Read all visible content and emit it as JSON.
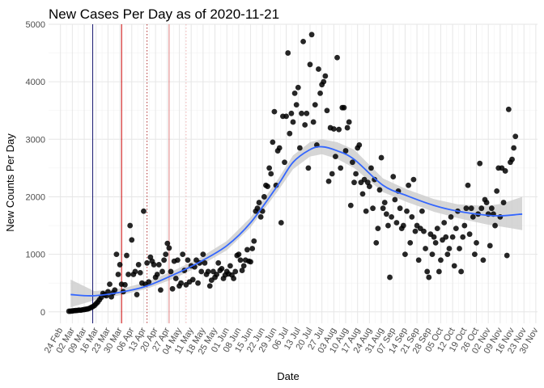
{
  "chart_data": {
    "type": "scatter",
    "title": "New Cases Per Day as of 2020-11-21",
    "xlabel": "Date",
    "ylabel": "New Counts Per Day",
    "x_range": [
      "2020-02-17",
      "2020-12-01"
    ],
    "ylim": [
      -200,
      5000
    ],
    "y_ticks": [
      0,
      1000,
      2000,
      3000,
      4000,
      5000
    ],
    "x_ticks": [
      "2020-02-24",
      "2020-03-02",
      "2020-03-09",
      "2020-03-16",
      "2020-03-23",
      "2020-03-30",
      "2020-04-06",
      "2020-04-13",
      "2020-04-20",
      "2020-04-27",
      "2020-05-04",
      "2020-05-11",
      "2020-05-18",
      "2020-05-25",
      "2020-06-01",
      "2020-06-08",
      "2020-06-15",
      "2020-06-22",
      "2020-06-29",
      "2020-07-06",
      "2020-07-13",
      "2020-07-20",
      "2020-07-27",
      "2020-08-03",
      "2020-08-10",
      "2020-08-17",
      "2020-08-24",
      "2020-08-31",
      "2020-09-07",
      "2020-09-14",
      "2020-09-21",
      "2020-09-28",
      "2020-10-05",
      "2020-10-12",
      "2020-10-19",
      "2020-10-26",
      "2020-11-02",
      "2020-11-09",
      "2020-11-16",
      "2020-11-23",
      "2020-11-30"
    ],
    "x_tick_labels": [
      "24 Feb",
      "02 Mar",
      "09 Mar",
      "16 Mar",
      "23 Mar",
      "30 Mar",
      "06 Apr",
      "13 Apr",
      "20 Apr",
      "27 Apr",
      "04 May",
      "11 May",
      "18 May",
      "25 May",
      "01 Jun",
      "08 Jun",
      "15 Jun",
      "22 Jun",
      "29 Jun",
      "06 Jul",
      "13 Jul",
      "20 Jul",
      "27 Jul",
      "03 Aug",
      "10 Aug",
      "17 Aug",
      "24 Aug",
      "31 Aug",
      "07 Sep",
      "14 Sep",
      "21 Sep",
      "28 Sep",
      "05 Oct",
      "12 Oct",
      "19 Oct",
      "26 Oct",
      "02 Nov",
      "09 Nov",
      "16 Nov",
      "23 Nov",
      "30 Nov"
    ],
    "grid": true,
    "vertical_lines": [
      {
        "x": "2020-03-14",
        "color": "#191970",
        "style": "solid"
      },
      {
        "x": "2020-03-31",
        "color": "#cc0000",
        "style": "solid"
      },
      {
        "x": "2020-04-15",
        "color": "#b03030",
        "style": "dotted"
      },
      {
        "x": "2020-04-28",
        "color": "#e08080",
        "style": "solid"
      },
      {
        "x": "2020-05-08",
        "color": "#f0b0b0",
        "style": "dotted"
      }
    ],
    "point_color": "#000000",
    "smooth_color": "#3366ff",
    "ribbon_color": "#cccccc",
    "smooth": {
      "x": [
        "2020-03-01",
        "2020-03-15",
        "2020-04-01",
        "2020-04-15",
        "2020-05-01",
        "2020-05-15",
        "2020-06-01",
        "2020-06-15",
        "2020-07-01",
        "2020-07-10",
        "2020-07-20",
        "2020-07-27",
        "2020-08-05",
        "2020-08-15",
        "2020-09-01",
        "2020-09-15",
        "2020-10-01",
        "2020-10-15",
        "2020-11-01",
        "2020-11-10",
        "2020-11-22"
      ],
      "y": [
        300,
        280,
        350,
        450,
        650,
        850,
        1150,
        1550,
        2200,
        2600,
        2820,
        2870,
        2800,
        2650,
        2200,
        2020,
        1850,
        1750,
        1680,
        1670,
        1700
      ],
      "lower": [
        80,
        200,
        300,
        400,
        580,
        780,
        1070,
        1470,
        2100,
        2480,
        2700,
        2740,
        2660,
        2500,
        2080,
        1910,
        1740,
        1630,
        1520,
        1480,
        1420
      ],
      "upper": [
        560,
        360,
        410,
        520,
        720,
        920,
        1230,
        1640,
        2300,
        2720,
        2950,
        3000,
        2950,
        2820,
        2320,
        2130,
        1960,
        1870,
        1840,
        1880,
        2000
      ]
    },
    "points": [
      [
        "2020-02-29",
        10
      ],
      [
        "2020-03-01",
        12
      ],
      [
        "2020-03-02",
        15
      ],
      [
        "2020-03-03",
        20
      ],
      [
        "2020-03-04",
        22
      ],
      [
        "2020-03-05",
        25
      ],
      [
        "2020-03-06",
        30
      ],
      [
        "2020-03-07",
        28
      ],
      [
        "2020-03-08",
        35
      ],
      [
        "2020-03-09",
        40
      ],
      [
        "2020-03-10",
        45
      ],
      [
        "2020-03-11",
        50
      ],
      [
        "2020-03-12",
        60
      ],
      [
        "2020-03-13",
        75
      ],
      [
        "2020-03-14",
        90
      ],
      [
        "2020-03-15",
        110
      ],
      [
        "2020-03-16",
        140
      ],
      [
        "2020-03-17",
        170
      ],
      [
        "2020-03-18",
        210
      ],
      [
        "2020-03-19",
        250
      ],
      [
        "2020-03-20",
        320
      ],
      [
        "2020-03-21",
        300
      ],
      [
        "2020-03-22",
        280
      ],
      [
        "2020-03-23",
        350
      ],
      [
        "2020-03-24",
        480
      ],
      [
        "2020-03-25",
        260
      ],
      [
        "2020-03-26",
        330
      ],
      [
        "2020-03-27",
        380
      ],
      [
        "2020-03-28",
        1000
      ],
      [
        "2020-03-29",
        650
      ],
      [
        "2020-03-30",
        820
      ],
      [
        "2020-03-31",
        480
      ],
      [
        "2020-04-01",
        350
      ],
      [
        "2020-04-02",
        470
      ],
      [
        "2020-04-03",
        980
      ],
      [
        "2020-04-04",
        650
      ],
      [
        "2020-04-05",
        1500
      ],
      [
        "2020-04-06",
        1250
      ],
      [
        "2020-04-07",
        650
      ],
      [
        "2020-04-08",
        700
      ],
      [
        "2020-04-09",
        300
      ],
      [
        "2020-04-10",
        820
      ],
      [
        "2020-04-11",
        680
      ],
      [
        "2020-04-12",
        500
      ],
      [
        "2020-04-13",
        1750
      ],
      [
        "2020-04-14",
        480
      ],
      [
        "2020-04-15",
        850
      ],
      [
        "2020-04-16",
        520
      ],
      [
        "2020-04-17",
        950
      ],
      [
        "2020-04-18",
        880
      ],
      [
        "2020-04-19",
        820
      ],
      [
        "2020-04-20",
        600
      ],
      [
        "2020-04-21",
        650
      ],
      [
        "2020-04-22",
        820
      ],
      [
        "2020-04-23",
        380
      ],
      [
        "2020-04-24",
        700
      ],
      [
        "2020-04-25",
        900
      ],
      [
        "2020-04-26",
        1000
      ],
      [
        "2020-04-27",
        1190
      ],
      [
        "2020-04-28",
        1110
      ],
      [
        "2020-04-29",
        700
      ],
      [
        "2020-04-30",
        400
      ],
      [
        "2020-05-01",
        880
      ],
      [
        "2020-05-02",
        580
      ],
      [
        "2020-05-03",
        900
      ],
      [
        "2020-05-04",
        450
      ],
      [
        "2020-05-05",
        500
      ],
      [
        "2020-05-06",
        1000
      ],
      [
        "2020-05-07",
        720
      ],
      [
        "2020-05-08",
        470
      ],
      [
        "2020-05-09",
        900
      ],
      [
        "2020-05-10",
        520
      ],
      [
        "2020-05-11",
        800
      ],
      [
        "2020-05-12",
        560
      ],
      [
        "2020-05-13",
        780
      ],
      [
        "2020-05-14",
        900
      ],
      [
        "2020-05-15",
        500
      ],
      [
        "2020-05-16",
        850
      ],
      [
        "2020-05-17",
        700
      ],
      [
        "2020-05-18",
        1000
      ],
      [
        "2020-05-19",
        850
      ],
      [
        "2020-05-20",
        650
      ],
      [
        "2020-05-21",
        700
      ],
      [
        "2020-05-22",
        450
      ],
      [
        "2020-05-23",
        550
      ],
      [
        "2020-05-24",
        700
      ],
      [
        "2020-05-25",
        600
      ],
      [
        "2020-05-26",
        650
      ],
      [
        "2020-05-27",
        850
      ],
      [
        "2020-05-28",
        720
      ],
      [
        "2020-05-29",
        750
      ],
      [
        "2020-05-30",
        580
      ],
      [
        "2020-05-31",
        640
      ],
      [
        "2020-06-01",
        700
      ],
      [
        "2020-06-02",
        660
      ],
      [
        "2020-06-03",
        800
      ],
      [
        "2020-06-04",
        640
      ],
      [
        "2020-06-05",
        580
      ],
      [
        "2020-06-06",
        700
      ],
      [
        "2020-06-07",
        980
      ],
      [
        "2020-06-08",
        1000
      ],
      [
        "2020-06-09",
        900
      ],
      [
        "2020-06-10",
        720
      ],
      [
        "2020-06-11",
        800
      ],
      [
        "2020-06-12",
        900
      ],
      [
        "2020-06-13",
        1080
      ],
      [
        "2020-06-14",
        880
      ],
      [
        "2020-06-15",
        870
      ],
      [
        "2020-06-16",
        1100
      ],
      [
        "2020-06-17",
        1230
      ],
      [
        "2020-06-18",
        1750
      ],
      [
        "2020-06-19",
        1800
      ],
      [
        "2020-06-20",
        1900
      ],
      [
        "2020-06-21",
        1650
      ],
      [
        "2020-06-22",
        1750
      ],
      [
        "2020-06-23",
        2000
      ],
      [
        "2020-06-24",
        2200
      ],
      [
        "2020-06-25",
        2180
      ],
      [
        "2020-06-26",
        2500
      ],
      [
        "2020-06-27",
        2400
      ],
      [
        "2020-06-28",
        2950
      ],
      [
        "2020-06-29",
        3480
      ],
      [
        "2020-06-30",
        2200
      ],
      [
        "2020-07-01",
        2800
      ],
      [
        "2020-07-02",
        2850
      ],
      [
        "2020-07-03",
        1550
      ],
      [
        "2020-07-04",
        3400
      ],
      [
        "2020-07-05",
        2600
      ],
      [
        "2020-07-06",
        3400
      ],
      [
        "2020-07-07",
        4500
      ],
      [
        "2020-07-08",
        3100
      ],
      [
        "2020-07-09",
        3450
      ],
      [
        "2020-07-10",
        3300
      ],
      [
        "2020-07-11",
        3800
      ],
      [
        "2020-07-12",
        3600
      ],
      [
        "2020-07-13",
        3900
      ],
      [
        "2020-07-14",
        2850
      ],
      [
        "2020-07-15",
        3450
      ],
      [
        "2020-07-16",
        4700
      ],
      [
        "2020-07-17",
        3250
      ],
      [
        "2020-07-18",
        3450
      ],
      [
        "2020-07-19",
        2500
      ],
      [
        "2020-07-20",
        4300
      ],
      [
        "2020-07-21",
        4820
      ],
      [
        "2020-07-22",
        3300
      ],
      [
        "2020-07-23",
        3600
      ],
      [
        "2020-07-24",
        2900
      ],
      [
        "2020-07-25",
        4220
      ],
      [
        "2020-07-26",
        3800
      ],
      [
        "2020-07-27",
        3950
      ],
      [
        "2020-07-28",
        4000
      ],
      [
        "2020-07-29",
        4100
      ],
      [
        "2020-07-30",
        3500
      ],
      [
        "2020-07-31",
        2270
      ],
      [
        "2020-08-01",
        3200
      ],
      [
        "2020-08-02",
        2400
      ],
      [
        "2020-08-03",
        3180
      ],
      [
        "2020-08-04",
        2700
      ],
      [
        "2020-08-05",
        4420
      ],
      [
        "2020-08-06",
        3170
      ],
      [
        "2020-08-07",
        2500
      ],
      [
        "2020-08-08",
        3550
      ],
      [
        "2020-08-09",
        3550
      ],
      [
        "2020-08-10",
        2800
      ],
      [
        "2020-08-11",
        3200
      ],
      [
        "2020-08-12",
        3300
      ],
      [
        "2020-08-13",
        1850
      ],
      [
        "2020-08-14",
        2600
      ],
      [
        "2020-08-15",
        2250
      ],
      [
        "2020-08-16",
        2400
      ],
      [
        "2020-08-17",
        2850
      ],
      [
        "2020-08-18",
        2900
      ],
      [
        "2020-08-19",
        2250
      ],
      [
        "2020-08-20",
        2050
      ],
      [
        "2020-08-21",
        2300
      ],
      [
        "2020-08-22",
        1750
      ],
      [
        "2020-08-23",
        2250
      ],
      [
        "2020-08-24",
        2180
      ],
      [
        "2020-08-25",
        2500
      ],
      [
        "2020-08-26",
        1800
      ],
      [
        "2020-08-27",
        2300
      ],
      [
        "2020-08-28",
        1200
      ],
      [
        "2020-08-29",
        1450
      ],
      [
        "2020-08-30",
        2120
      ],
      [
        "2020-08-31",
        2680
      ],
      [
        "2020-09-01",
        1800
      ],
      [
        "2020-09-02",
        1900
      ],
      [
        "2020-09-03",
        1700
      ],
      [
        "2020-09-04",
        1500
      ],
      [
        "2020-09-05",
        600
      ],
      [
        "2020-09-06",
        1650
      ],
      [
        "2020-09-07",
        2350
      ],
      [
        "2020-09-08",
        1950
      ],
      [
        "2020-09-09",
        1550
      ],
      [
        "2020-09-10",
        2100
      ],
      [
        "2020-09-11",
        1800
      ],
      [
        "2020-09-12",
        1450
      ],
      [
        "2020-09-13",
        1500
      ],
      [
        "2020-09-14",
        1000
      ],
      [
        "2020-09-15",
        1750
      ],
      [
        "2020-09-16",
        2200
      ],
      [
        "2020-09-17",
        1200
      ],
      [
        "2020-09-18",
        1650
      ],
      [
        "2020-09-19",
        2300
      ],
      [
        "2020-09-20",
        1400
      ],
      [
        "2020-09-21",
        1500
      ],
      [
        "2020-09-22",
        900
      ],
      [
        "2020-09-23",
        1450
      ],
      [
        "2020-09-24",
        1750
      ],
      [
        "2020-09-25",
        1400
      ],
      [
        "2020-09-26",
        1100
      ],
      [
        "2020-09-27",
        700
      ],
      [
        "2020-09-28",
        600
      ],
      [
        "2020-09-29",
        1350
      ],
      [
        "2020-09-30",
        1000
      ],
      [
        "2020-10-01",
        1300
      ],
      [
        "2020-10-02",
        1200
      ],
      [
        "2020-10-03",
        1450
      ],
      [
        "2020-10-04",
        700
      ],
      [
        "2020-10-05",
        900
      ],
      [
        "2020-10-06",
        1250
      ],
      [
        "2020-10-07",
        1550
      ],
      [
        "2020-10-08",
        1300
      ],
      [
        "2020-10-09",
        1000
      ],
      [
        "2020-10-10",
        1100
      ],
      [
        "2020-10-11",
        1650
      ],
      [
        "2020-10-12",
        1300
      ],
      [
        "2020-10-13",
        800
      ],
      [
        "2020-10-14",
        1450
      ],
      [
        "2020-10-15",
        1750
      ],
      [
        "2020-10-16",
        1100
      ],
      [
        "2020-10-17",
        700
      ],
      [
        "2020-10-18",
        1300
      ],
      [
        "2020-10-19",
        1500
      ],
      [
        "2020-10-20",
        1800
      ],
      [
        "2020-10-21",
        2200
      ],
      [
        "2020-10-22",
        1350
      ],
      [
        "2020-10-23",
        1800
      ],
      [
        "2020-10-24",
        1650
      ],
      [
        "2020-10-25",
        1000
      ],
      [
        "2020-10-26",
        1200
      ],
      [
        "2020-10-27",
        1700
      ],
      [
        "2020-10-28",
        2580
      ],
      [
        "2020-10-29",
        1800
      ],
      [
        "2020-10-30",
        900
      ],
      [
        "2020-10-31",
        1950
      ],
      [
        "2020-11-01",
        1900
      ],
      [
        "2020-11-02",
        1700
      ],
      [
        "2020-11-03",
        1150
      ],
      [
        "2020-11-04",
        1800
      ],
      [
        "2020-11-05",
        1700
      ],
      [
        "2020-11-06",
        1500
      ],
      [
        "2020-11-07",
        2100
      ],
      [
        "2020-11-08",
        2500
      ],
      [
        "2020-11-09",
        1650
      ],
      [
        "2020-11-10",
        2500
      ],
      [
        "2020-11-11",
        1900
      ],
      [
        "2020-11-12",
        2450
      ],
      [
        "2020-11-13",
        980
      ],
      [
        "2020-11-14",
        3520
      ],
      [
        "2020-11-15",
        2600
      ],
      [
        "2020-11-16",
        2650
      ],
      [
        "2020-11-17",
        2850
      ],
      [
        "2020-11-18",
        3050
      ]
    ]
  }
}
